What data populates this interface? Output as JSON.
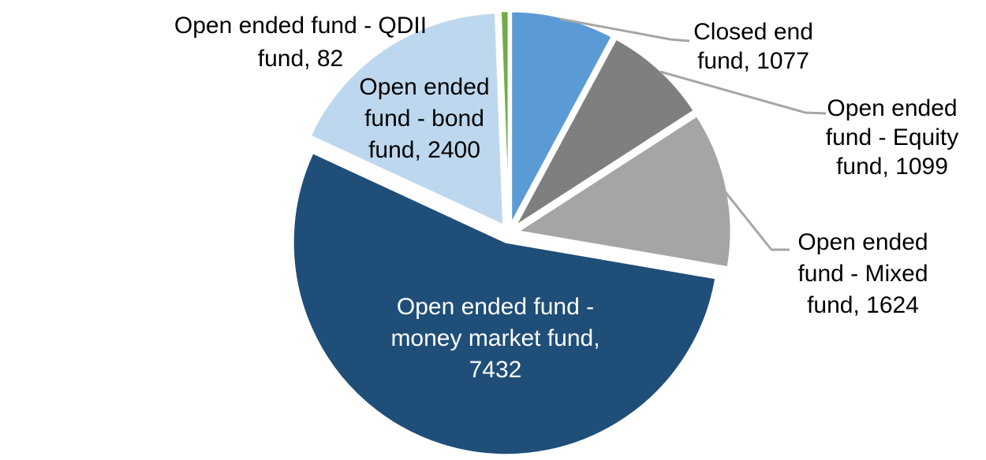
{
  "chart_data": {
    "type": "pie",
    "title": "",
    "legend": "none",
    "direction": "clockwise",
    "start_angle_deg": 0,
    "data_label_format": "category name, value",
    "total": 13714,
    "series": [
      {
        "label": "Closed end fund",
        "value": 1077,
        "color": "#5B9BD5",
        "display": "Closed end\nfund, 1077"
      },
      {
        "label": "Open ended fund - Equity fund",
        "value": 1099,
        "color": "#7F7F7F",
        "display": "Open ended\nfund - Equity\nfund, 1099"
      },
      {
        "label": "Open ended fund - Mixed fund",
        "value": 1624,
        "color": "#A5A5A5",
        "display": "Open ended\nfund - Mixed\nfund, 1624"
      },
      {
        "label": "Open ended fund - money market fund",
        "value": 7432,
        "color": "#1F4E79",
        "display": "Open ended fund -\nmoney market fund,\n7432"
      },
      {
        "label": "Open ended fund - bond fund",
        "value": 2400,
        "color": "#BDD7EE",
        "display": "Open ended\nfund - bond\nfund, 2400"
      },
      {
        "label": "Open ended fund - QDII fund",
        "value": 82,
        "color": "#70AD47",
        "display": "Open ended fund - QDII\nfund, 82"
      }
    ]
  },
  "colors": {
    "background": "#FFFFFF",
    "leader_line": "#A6A6A6",
    "slice_gap_stroke": "#FFFFFF",
    "label_text": "#000000",
    "money_market_label_text": "#FFFFFF"
  }
}
